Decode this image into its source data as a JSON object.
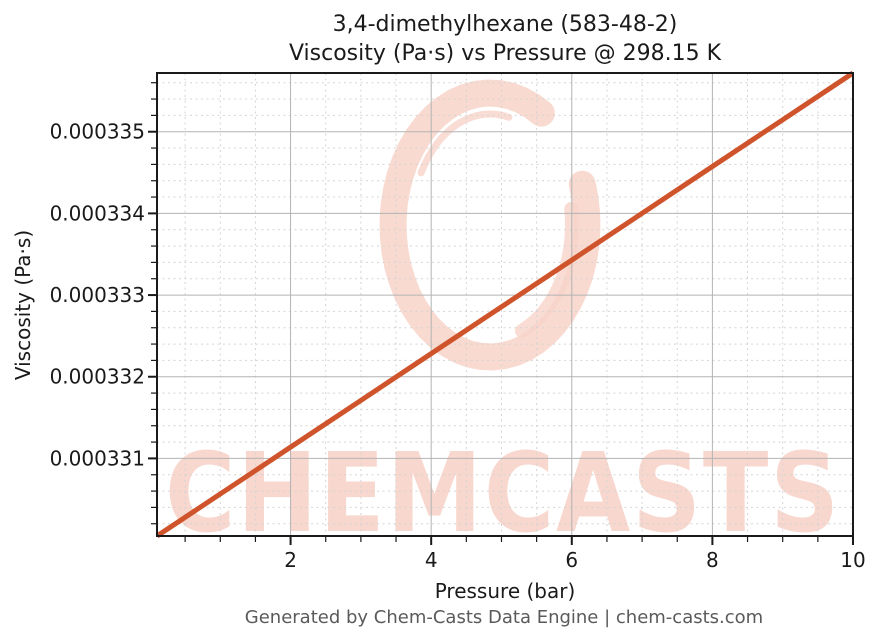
{
  "chart_data": {
    "type": "line",
    "title": "3,4-dimethylhexane (583-48-2)",
    "subtitle": "Viscosity (Pa·s) vs Pressure @ 298.15 K",
    "xlabel": "Pressure (bar)",
    "ylabel": "Viscosity (Pa·s)",
    "xlim": [
      0.1,
      10
    ],
    "ylim": [
      0.00033005,
      0.000335719
    ],
    "xticks": [
      2,
      4,
      6,
      8,
      10
    ],
    "xtick_labels": [
      "2",
      "4",
      "6",
      "8",
      "10"
    ],
    "yticks": [
      0.000331,
      0.000332,
      0.000333,
      0.000334,
      0.000335
    ],
    "ytick_labels": [
      "0.000331",
      "0.000332",
      "0.000333",
      "0.000334",
      "0.000335"
    ],
    "x_minor_step": 0.5,
    "y_minor_step": 2e-07,
    "grid": {
      "major": true,
      "minor": true
    },
    "legend": null,
    "series": [
      {
        "name": "Viscosity vs Pressure",
        "color": "#cf542b",
        "x": [
          0.1,
          1,
          2,
          3,
          4,
          5,
          6,
          7,
          8,
          9,
          10
        ],
        "y": [
          0.00033005,
          0.000330565,
          0.000331138,
          0.00033171,
          0.000332283,
          0.000332856,
          0.000333428,
          0.000334001,
          0.000334574,
          0.000335146,
          0.000335719
        ]
      }
    ]
  },
  "watermark": {
    "text": "CHEMCASTS",
    "logo": "brush-circle-logo",
    "color": "#f8d3c8"
  },
  "footer": {
    "text": "Generated by Chem-Casts Data Engine | chem-casts.com"
  },
  "colors": {
    "line": "#cf542b",
    "grid_major": "#b3b3b3",
    "grid_minor": "#d4d4d4",
    "axis_text": "#1a1a1a",
    "footer_text": "#5a5a5a",
    "watermark": "#f8d3c8"
  }
}
